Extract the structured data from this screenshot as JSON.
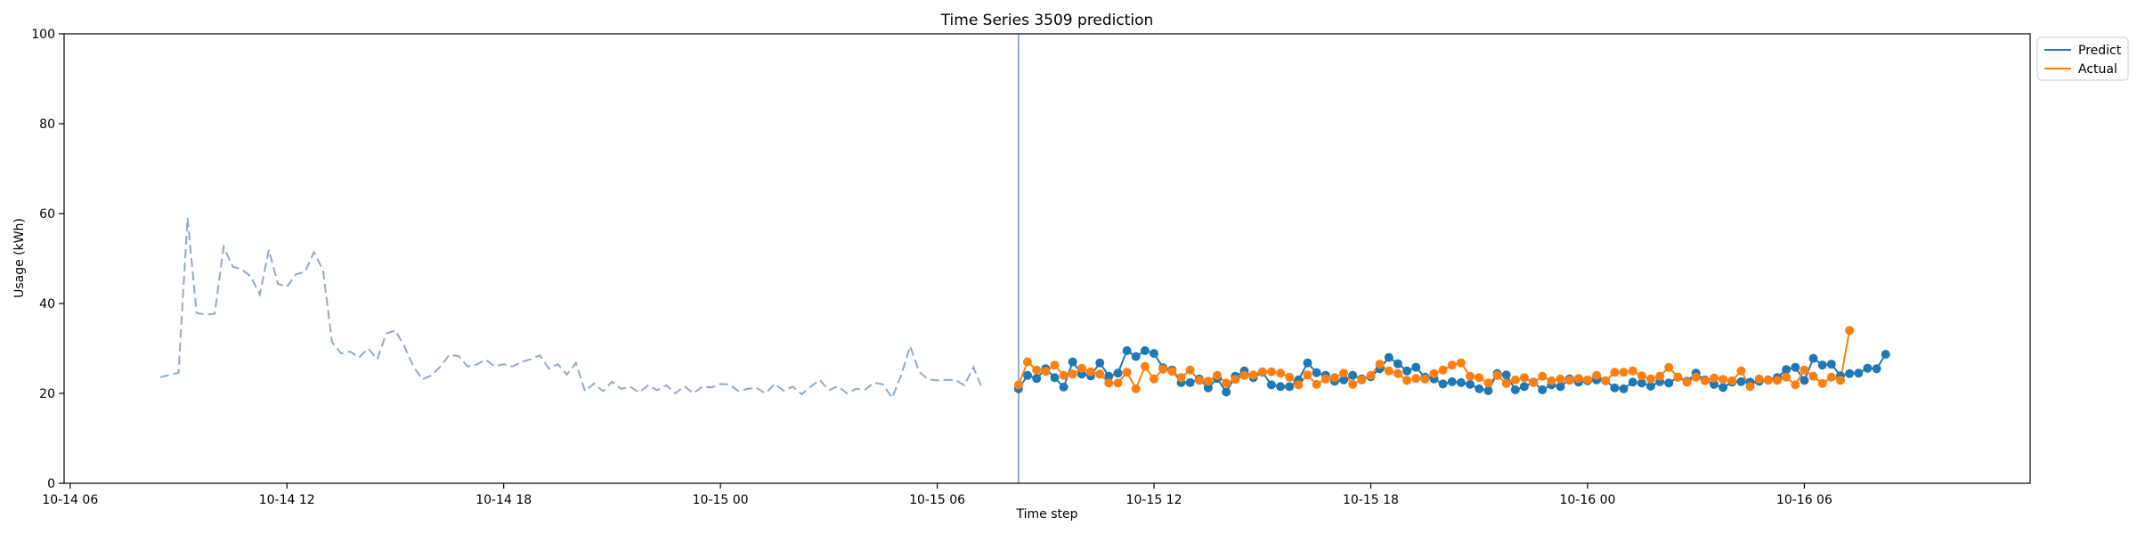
{
  "colors": {
    "predict": "#1f77b4",
    "actual": "#ff7f0e",
    "history": "#8fa9c9",
    "divider": "#7b93c4"
  },
  "chart_data": {
    "type": "line",
    "title": "Time Series 3509 prediction",
    "xlabel": "Time step",
    "ylabel": "Usage (kWh)",
    "ylim": [
      0,
      100
    ],
    "xlim": [
      "2023-10-14T05:50",
      "2023-10-16T12:15"
    ],
    "yticks": [
      0,
      20,
      40,
      60,
      80,
      100
    ],
    "xticks": [
      {
        "t": "2023-10-14T06:00",
        "label": "10-14 06"
      },
      {
        "t": "2023-10-14T12:00",
        "label": "10-14 12"
      },
      {
        "t": "2023-10-14T18:00",
        "label": "10-14 18"
      },
      {
        "t": "2023-10-15T00:00",
        "label": "10-15 00"
      },
      {
        "t": "2023-10-15T06:00",
        "label": "10-15 06"
      },
      {
        "t": "2023-10-15T12:00",
        "label": "10-15 12"
      },
      {
        "t": "2023-10-15T18:00",
        "label": "10-15 18"
      },
      {
        "t": "2023-10-16T00:00",
        "label": "10-16 00"
      },
      {
        "t": "2023-10-16T06:00",
        "label": "10-16 06"
      }
    ],
    "legend": {
      "position": "outside-top-right"
    },
    "grid": false,
    "forecast_start": "2023-10-15T08:15",
    "interval_minutes": 15,
    "history": {
      "start": "2023-10-14T08:30",
      "values": [
        23.6,
        24.1,
        24.6,
        59.0,
        37.9,
        37.5,
        37.7,
        52.6,
        48.2,
        47.6,
        46.0,
        42.0,
        51.9,
        44.4,
        43.7,
        46.5,
        47.0,
        51.4,
        47.4,
        31.4,
        28.9,
        29.3,
        28.0,
        30.0,
        27.6,
        33.3,
        34.0,
        30.5,
        26.0,
        23.1,
        24.0,
        26.0,
        28.6,
        28.3,
        26.0,
        26.4,
        27.5,
        26.0,
        26.5,
        26.0,
        27.0,
        27.6,
        28.5,
        25.5,
        26.5,
        24.2,
        26.8,
        20.5,
        22.2,
        20.5,
        22.6,
        21.0,
        21.5,
        20.2,
        21.8,
        20.7,
        21.8,
        20.0,
        21.6,
        20.0,
        21.5,
        21.3,
        22.1,
        22.0,
        20.5,
        21.0,
        21.2,
        20.0,
        22.1,
        20.6,
        21.5,
        19.8,
        21.5,
        23.0,
        20.7,
        21.6,
        20.0,
        21.0,
        20.8,
        22.4,
        22.0,
        19.0,
        24.0,
        30.5,
        24.8,
        23.1,
        22.9,
        23.0,
        23.0,
        21.8,
        25.8,
        21.0
      ]
    },
    "series": [
      {
        "name": "Predict",
        "start": "2023-10-15T08:15",
        "values": [
          21.0,
          24.0,
          23.3,
          25.5,
          23.5,
          21.4,
          27.0,
          24.3,
          23.9,
          26.8,
          23.8,
          24.5,
          29.5,
          28.2,
          29.5,
          28.9,
          25.7,
          25.2,
          22.4,
          22.4,
          23.2,
          21.2,
          23.3,
          20.3,
          23.8,
          25.0,
          23.5,
          24.7,
          21.9,
          21.5,
          21.5,
          23.0,
          26.8,
          24.6,
          24.0,
          22.7,
          23.0,
          24.0,
          23.2,
          23.7,
          25.5,
          28.0,
          26.6,
          25.0,
          25.8,
          23.6,
          23.2,
          22.1,
          22.6,
          22.4,
          22.0,
          21.0,
          20.6,
          24.4,
          24.1,
          20.8,
          21.5,
          22.5,
          20.8,
          21.9,
          21.5,
          23.2,
          22.5,
          22.8,
          23.0,
          22.8,
          21.2,
          21.0,
          22.5,
          22.3,
          21.6,
          22.6,
          22.3,
          23.6,
          22.7,
          24.5,
          23.0,
          22.0,
          21.3,
          22.5,
          22.6,
          22.5,
          22.7,
          23.0,
          23.5,
          25.3,
          25.8,
          22.9,
          27.8,
          26.3,
          26.5,
          23.9,
          24.4,
          24.5,
          25.6,
          25.5,
          28.7
        ]
      },
      {
        "name": "Actual",
        "start": "2023-10-15T08:15",
        "values": [
          21.9,
          27.0,
          25.2,
          24.9,
          26.3,
          24.0,
          24.3,
          25.6,
          24.8,
          24.3,
          22.3,
          22.3,
          24.7,
          21.0,
          26.0,
          23.2,
          25.4,
          24.9,
          23.5,
          25.2,
          22.9,
          22.7,
          24.0,
          22.3,
          23.1,
          24.0,
          24.1,
          24.8,
          24.8,
          24.5,
          23.6,
          21.9,
          24.1,
          22.0,
          23.2,
          23.5,
          24.5,
          22.0,
          23.0,
          24.0,
          26.5,
          25.0,
          24.4,
          22.9,
          23.3,
          23.2,
          24.4,
          25.2,
          26.3,
          26.8,
          23.8,
          23.5,
          22.3,
          24.0,
          22.2,
          23.0,
          23.5,
          22.4,
          23.8,
          22.8,
          23.2,
          22.9,
          23.3,
          23.0,
          24.0,
          22.8,
          24.7,
          24.7,
          25.0,
          23.9,
          23.2,
          23.8,
          25.8,
          23.6,
          22.5,
          23.6,
          22.8,
          23.4,
          23.1,
          22.8,
          25.0,
          21.5,
          23.2,
          22.9,
          22.9,
          23.6,
          21.9,
          25.2,
          23.8,
          22.2,
          23.6,
          22.9,
          34.0
        ]
      }
    ]
  }
}
